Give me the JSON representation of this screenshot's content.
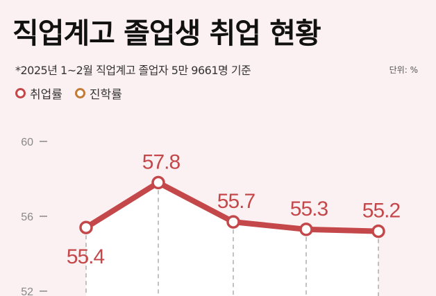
{
  "title": "직업계고 졸업생 취업 현황",
  "subtitle": "*2025년 1~2월 직업계고 졸업자 5만 9661명 기준",
  "unit": "단위: %",
  "legend": [
    {
      "label": "취업률",
      "color": "#c4474a"
    },
    {
      "label": "진학률",
      "color": "#c47a35"
    }
  ],
  "chart_data": {
    "type": "line",
    "title": "직업계고 졸업생 취업 현황",
    "ylim": [
      52,
      60
    ],
    "yticks": [
      "60",
      "56",
      "52"
    ],
    "grid": false,
    "legend_placement": "top-left",
    "series": [
      {
        "name": "취업률",
        "color": "#c4474a",
        "values": [
          55.4,
          57.8,
          55.7,
          55.3,
          55.2
        ],
        "labels": [
          "55.4",
          "57.8",
          "55.7",
          "55.3",
          "55.2"
        ]
      },
      {
        "name": "진학률",
        "color": "#c47a35",
        "values": []
      }
    ]
  }
}
